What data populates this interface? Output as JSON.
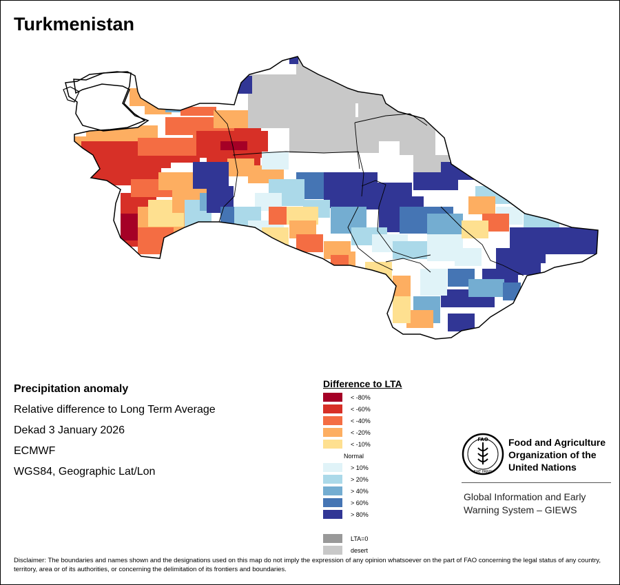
{
  "title": "Turkmenistan",
  "info": {
    "heading": "Precipitation anomaly",
    "line1": "Relative difference to Long Term Average",
    "line2": "Dekad 3 January 2026",
    "line3": "ECMWF",
    "line4": "WGS84, Geographic Lat/Lon"
  },
  "legend": {
    "title": "Difference to LTA",
    "classes": [
      {
        "label": "< -80%",
        "color": "#a50026"
      },
      {
        "label": "< -60%",
        "color": "#d73027"
      },
      {
        "label": "< -40%",
        "color": "#f46d43"
      },
      {
        "label": "< -20%",
        "color": "#fdae61"
      },
      {
        "label": "< -10%",
        "color": "#fee090"
      },
      {
        "label": "Normal",
        "color": "#ffffff"
      },
      {
        "label": "> 10%",
        "color": "#e0f3f8"
      },
      {
        "label": "> 20%",
        "color": "#abd9e9"
      },
      {
        "label": "> 40%",
        "color": "#74add1"
      },
      {
        "label": "> 60%",
        "color": "#4575b4"
      },
      {
        "label": "> 80%",
        "color": "#313695"
      }
    ],
    "extra": [
      {
        "label": "LTA=0",
        "color": "#999999"
      },
      {
        "label": "desert",
        "color": "#c8c8c8"
      }
    ]
  },
  "fao": {
    "logo_letters": "FAO",
    "logo_motto": "FIAT PANIS",
    "name_line1": "Food and Agriculture",
    "name_line2": "Organization of the",
    "name_line3": "United Nations",
    "giews_line1": "Global Information and Early",
    "giews_line2": "Warning System – GIEWS"
  },
  "disclaimer": "Disclaimer: The boundaries and names shown and the designations used on this map do not imply the expression of any opinion whatsoever on the part of FAO concerning the legal status of any country, territory, area or of its authorities, or concerning the delimitation of its frontiers and boundaries."
}
